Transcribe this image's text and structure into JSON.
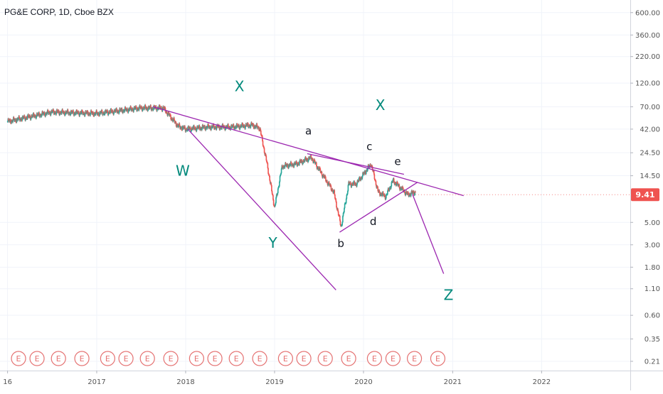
{
  "chart_title": "PG&E CORP, 1D, Cboe BZX",
  "colors": {
    "up": "#26a69a",
    "down": "#ef5350",
    "trendline": "#9c27b0",
    "label_green": "#00897b",
    "label_black": "#131722",
    "price_badge": "#ef5350",
    "earnings": "#e57373",
    "axis_text": "#555555",
    "grid": "#f0f3fa"
  },
  "chart_data": {
    "type": "line",
    "title": "PG&E CORP, 1D, Cboe BZX",
    "yscale": "log",
    "ylim": [
      0.17,
      800
    ],
    "xlim": [
      "2015-12-01",
      "2022-12-31"
    ],
    "y_ticks": [
      "600.00",
      "360.00",
      "220.00",
      "120.00",
      "70.00",
      "42.00",
      "24.50",
      "14.50",
      "5.00",
      "3.00",
      "1.80",
      "1.10",
      "0.60",
      "0.35",
      "0.21"
    ],
    "x_tick_labels": [
      "16",
      "2017",
      "2018",
      "2019",
      "2020",
      "2021",
      "2022"
    ],
    "x": [
      "2016-01",
      "2016-07",
      "2017-01",
      "2017-07",
      "2017-10",
      "2017-12",
      "2018-01",
      "2018-04",
      "2018-07",
      "2018-10",
      "2018-11",
      "2018-12",
      "2019-01",
      "2019-02",
      "2019-04",
      "2019-06",
      "2019-08",
      "2019-09",
      "2019-10",
      "2019-11",
      "2019-12",
      "2020-01",
      "2020-02",
      "2020-03",
      "2020-04",
      "2020-05",
      "2020-06",
      "2020-07",
      "2020-08"
    ],
    "values": [
      50,
      62,
      60,
      68,
      68,
      45,
      42,
      44,
      44,
      46,
      43,
      19,
      7,
      18,
      19,
      22,
      13,
      10,
      4.5,
      12,
      12,
      15,
      19,
      10,
      9,
      13,
      11,
      9.4,
      10
    ],
    "last_price": "9.41",
    "trendlines": [
      {
        "from": [
          "2017-08-20",
          70
        ],
        "to": [
          "2021-02-15",
          9.2
        ]
      },
      {
        "from": [
          "2018-01-10",
          42
        ],
        "to": [
          "2019-09-10",
          1.07
        ]
      },
      {
        "from": [
          "2019-05-15",
          24
        ],
        "to": [
          "2020-06-15",
          15
        ]
      },
      {
        "from": [
          "2019-09-25",
          4.0
        ],
        "to": [
          "2020-08-10",
          12.5
        ]
      },
      {
        "from": [
          "2020-07-20",
          9.5
        ],
        "to": [
          "2020-11-25",
          1.55
        ]
      }
    ],
    "wave_labels": [
      {
        "text": "X",
        "date": "2018-08-10",
        "price": 100,
        "color": "green"
      },
      {
        "text": "X",
        "date": "2020-03-10",
        "price": 65,
        "color": "green"
      },
      {
        "text": "W",
        "date": "2017-12-20",
        "price": 14.5,
        "color": "green"
      },
      {
        "text": "Y",
        "date": "2018-12-25",
        "price": 2.8,
        "color": "green"
      },
      {
        "text": "Z",
        "date": "2020-12-15",
        "price": 0.85,
        "color": "green"
      },
      {
        "text": "a",
        "date": "2019-05-20",
        "price": 37,
        "color": "black"
      },
      {
        "text": "c",
        "date": "2020-01-25",
        "price": 26,
        "color": "black"
      },
      {
        "text": "e",
        "date": "2020-05-20",
        "price": 18.5,
        "color": "black"
      },
      {
        "text": "d",
        "date": "2020-02-10",
        "price": 4.7,
        "color": "black"
      },
      {
        "text": "b",
        "date": "2019-09-30",
        "price": 2.85,
        "color": "black"
      }
    ],
    "earnings_dates": [
      "2016-02-15",
      "2016-05-01",
      "2016-07-28",
      "2016-11-01",
      "2017-02-15",
      "2017-05-01",
      "2017-07-28",
      "2017-11-01",
      "2018-02-15",
      "2018-05-01",
      "2018-07-28",
      "2018-11-01",
      "2019-02-15",
      "2019-05-01",
      "2019-07-28",
      "2019-11-01",
      "2020-02-15",
      "2020-05-01",
      "2020-07-28",
      "2020-11-01"
    ],
    "earnings_label": "E"
  }
}
